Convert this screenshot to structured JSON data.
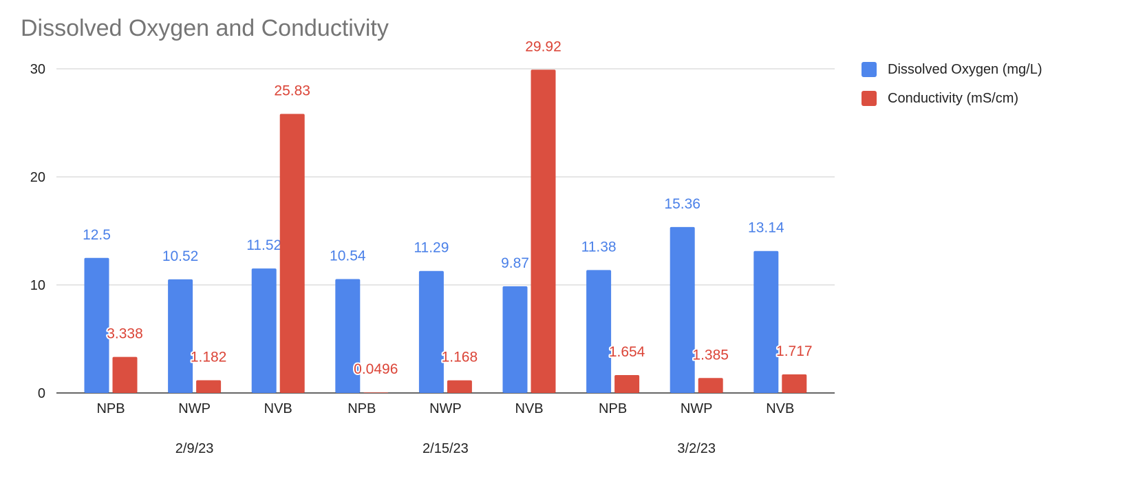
{
  "chart_data": {
    "type": "bar",
    "title": "Dissolved Oxygen and Conductivity",
    "xlabel": "",
    "ylabel": "",
    "ylim": [
      0,
      30
    ],
    "yticks": [
      "0",
      "10",
      "20",
      "30"
    ],
    "ytick_values": [
      0,
      10,
      20,
      30
    ],
    "grid": true,
    "legend_position": "right",
    "categories": [
      "NPB",
      "NWP",
      "NVB",
      "NPB",
      "NWP",
      "NVB",
      "NPB",
      "NWP",
      "NVB"
    ],
    "groups": [
      {
        "label": "2/9/23",
        "span": [
          0,
          2
        ]
      },
      {
        "label": "2/15/23",
        "span": [
          3,
          5
        ]
      },
      {
        "label": "3/2/23",
        "span": [
          6,
          8
        ]
      }
    ],
    "series": [
      {
        "name": "Dissolved Oxygen (mg/L)",
        "color": "#4f86ec",
        "label_color": "#4a80e8",
        "values": [
          12.5,
          10.52,
          11.52,
          10.54,
          11.29,
          9.87,
          11.38,
          15.36,
          13.14
        ],
        "labels": [
          "12.5",
          "10.52",
          "11.52",
          "10.54",
          "11.29",
          "9.87",
          "11.38",
          "15.36",
          "13.14"
        ]
      },
      {
        "name": "Conductivity (mS/cm)",
        "color": "#db4f40",
        "label_color": "#db4437",
        "values": [
          3.338,
          1.182,
          25.83,
          0.0496,
          1.168,
          29.92,
          1.654,
          1.385,
          1.717
        ],
        "labels": [
          "3.338",
          "1.182",
          "25.83",
          "0.0496",
          "1.168",
          "29.92",
          "1.654",
          "1.385",
          "1.717"
        ]
      }
    ]
  }
}
